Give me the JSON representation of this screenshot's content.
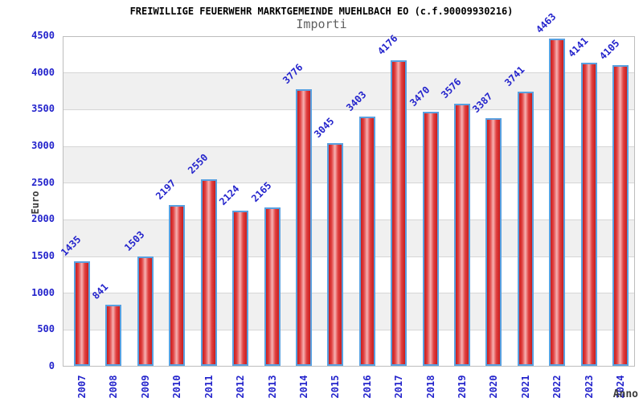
{
  "chart_data": {
    "type": "bar",
    "title": "FREIWILLIGE FEUERWEHR MARKTGEMEINDE MUEHLBACH EO (c.f.90009930216)",
    "subtitle": "Importi",
    "xlabel": "Anno",
    "ylabel": "Euro",
    "categories": [
      "2007",
      "2008",
      "2009",
      "2010",
      "2011",
      "2012",
      "2013",
      "2014",
      "2015",
      "2016",
      "2017",
      "2018",
      "2019",
      "2020",
      "2021",
      "2022",
      "2023",
      "2024"
    ],
    "values": [
      1435,
      841,
      1503,
      2197,
      2550,
      2124,
      2165,
      3776,
      3045,
      3403,
      4176,
      3470,
      3576,
      3387,
      3741,
      4463,
      4141,
      4105
    ],
    "bar_value_labels": [
      "1435",
      "841",
      "1503",
      "2197",
      "2550",
      "2124",
      "2165",
      "3776",
      "3045",
      "3403",
      "4176",
      "3470",
      "3576",
      "3387",
      "3741",
      "4463",
      "4141",
      "4105"
    ],
    "ylim": [
      0,
      4500
    ],
    "yticks": [
      0,
      500,
      1000,
      1500,
      2000,
      2500,
      3000,
      3500,
      4000,
      4500
    ],
    "grid": "alternating horizontal bands every 500, light gridlines",
    "legend": "none",
    "colors": {
      "label_blue": "#2424cc",
      "band_gray": "#f0f0f0",
      "band_white": "#ffffff",
      "gridline": "#d6d6d6",
      "plot_border": "#bdbdbd",
      "bar_border_blue": "#58a0e0",
      "bar_red_dark": "#c81d1d",
      "bar_red": "#e04040",
      "bar_red_light": "#f6b2b2",
      "title_black": "#000000",
      "subtitle_gray": "#606060",
      "axis_title_gray": "#3c3c3c"
    }
  }
}
